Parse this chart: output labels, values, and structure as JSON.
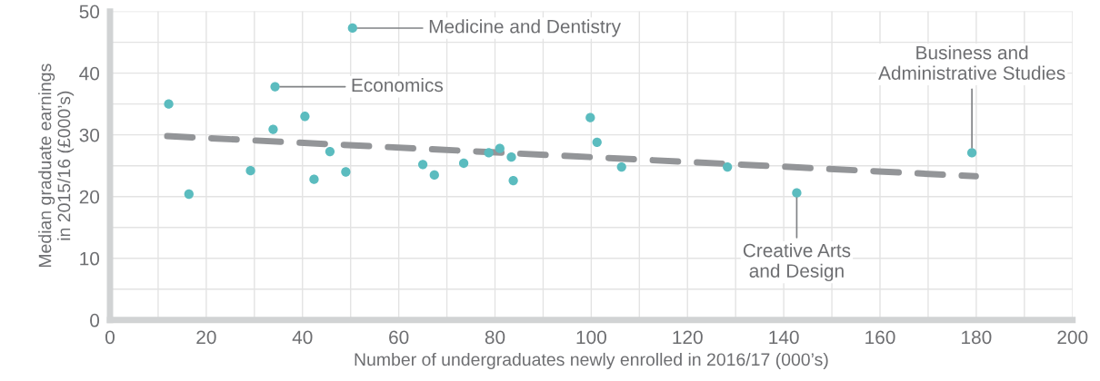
{
  "chart_data": {
    "type": "scatter",
    "xlabel": "Number of undergraduates newly enrolled in 2016/17 (000’s)",
    "ylabel": "Median graduate earnings\nin 2015/16 (£000’s)",
    "xlim": [
      0,
      200
    ],
    "xticks": [
      0,
      20,
      40,
      60,
      80,
      100,
      120,
      140,
      160,
      180,
      200
    ],
    "ylim": [
      0,
      50
    ],
    "yticks": [
      0,
      10,
      20,
      30,
      40,
      50
    ],
    "grid": true,
    "marker": "circle",
    "series": [
      {
        "color": "#5bbcbf",
        "x": [
          12.2,
          16.4,
          29.2,
          33.9,
          34.3,
          40.5,
          42.4,
          45.7,
          49.0,
          50.4,
          65.0,
          67.4,
          73.5,
          78.7,
          81.0,
          83.4,
          83.8,
          99.8,
          101.2,
          106.3,
          128.3,
          142.7,
          179.1
        ],
        "values": [
          35.0,
          20.4,
          24.2,
          30.9,
          37.8,
          33.0,
          22.8,
          27.3,
          24.0,
          47.3,
          25.2,
          23.5,
          25.4,
          27.1,
          27.8,
          26.4,
          22.6,
          32.8,
          28.8,
          24.8,
          24.8,
          20.6,
          27.1
        ]
      },
      {
        "type": "line",
        "color": "#939598",
        "marker": "none",
        "line_style": "dashed",
        "x": [
          11.9,
          179.9
        ],
        "values": [
          29.8,
          23.3
        ]
      }
    ],
    "annotations": [
      {
        "text": "Medicine and Dentistry",
        "x": 50.4,
        "y": 47.3
      },
      {
        "text": "Economics",
        "x": 34.3,
        "y": 37.8
      },
      {
        "text": "Business and\nAdministrative Studies",
        "x": 179.1,
        "y": 27.1
      },
      {
        "text": "Creative Arts\nand Design",
        "x": 142.7,
        "y": 20.6
      }
    ]
  }
}
